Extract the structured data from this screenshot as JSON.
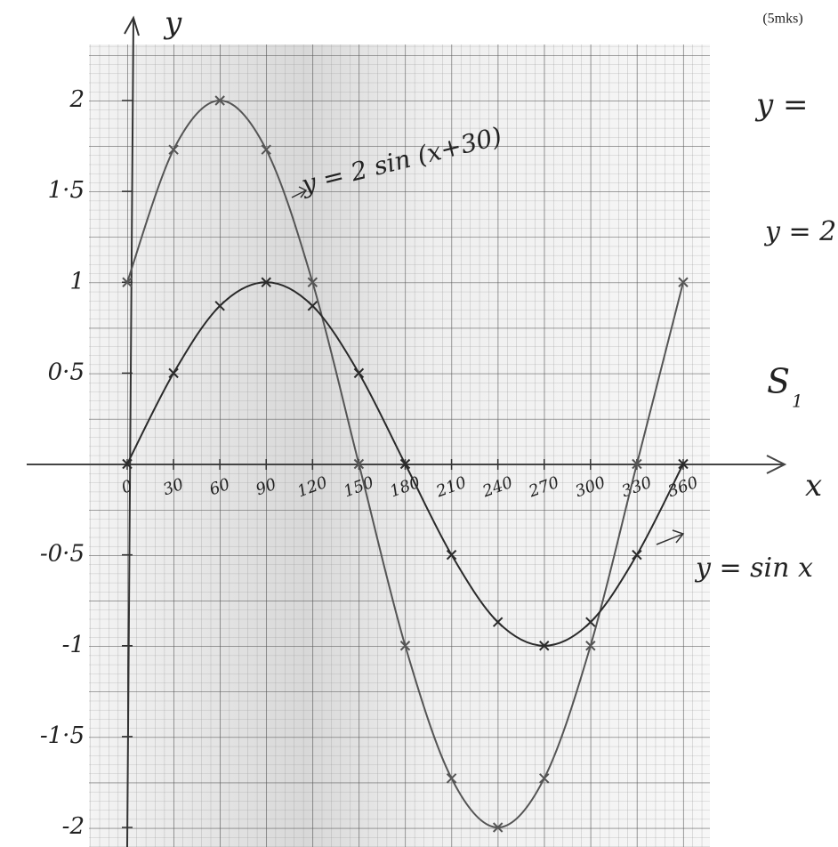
{
  "chart_data": {
    "type": "line",
    "marks_note": "(5mks)",
    "xlabel": "x",
    "ylabel": "y",
    "x": [
      0,
      30,
      60,
      90,
      120,
      150,
      180,
      210,
      240,
      270,
      300,
      330,
      360
    ],
    "series": [
      {
        "name": "y = 2 sin (x+30)",
        "color": "#555555",
        "values": [
          1,
          1.73,
          2,
          1.73,
          1,
          0,
          -1,
          -1.73,
          -2,
          -1.73,
          -1,
          0,
          1
        ]
      },
      {
        "name": "y = sin x",
        "color": "#2a2a2a",
        "values": [
          0,
          0.5,
          0.87,
          1,
          0.87,
          0.5,
          0,
          -0.5,
          -0.87,
          -1,
          -0.87,
          -0.5,
          0
        ]
      }
    ],
    "xlim": [
      0,
      360
    ],
    "ylim": [
      -2,
      2
    ],
    "xticks": [
      0,
      30,
      60,
      90,
      120,
      150,
      180,
      210,
      240,
      270,
      300,
      330,
      360
    ],
    "yticks": [
      2,
      {
        "value": 1.5,
        "label": "1·5"
      },
      1,
      {
        "value": 0.5,
        "label": "0·5"
      },
      {
        "value": -0.5,
        "label": "-0·5"
      },
      -1,
      {
        "value": -1.5,
        "label": "-1·5"
      },
      -2
    ],
    "side_notes": [
      "y =",
      "y = 2"
    ],
    "s_label": {
      "main": "S",
      "sub": "1"
    }
  }
}
